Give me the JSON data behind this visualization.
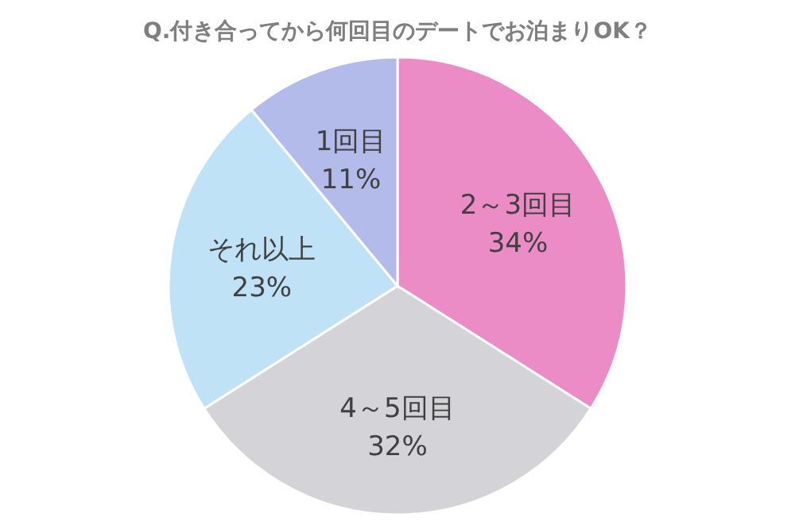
{
  "chart_data": {
    "type": "pie",
    "title": "Q.付き合ってから何回目のデートでお泊まりOK？",
    "categories": [
      "2～3回目",
      "4～5回目",
      "それ以上",
      "1回目"
    ],
    "values": [
      34,
      32,
      23,
      11
    ],
    "value_labels": [
      "34%",
      "32%",
      "23%",
      "11%"
    ],
    "colors": [
      "#ec8cc6",
      "#d4d4d8",
      "#bfe2f6",
      "#b3bbea"
    ]
  }
}
